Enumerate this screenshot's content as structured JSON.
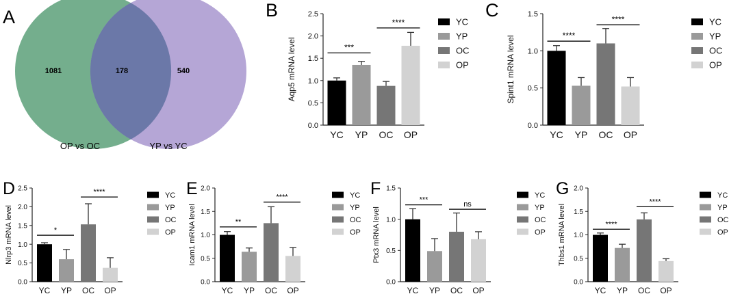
{
  "chart_data": [
    {
      "type": "venn",
      "letter": "A",
      "left_only": "1081",
      "overlap": "178",
      "right_only": "540",
      "left_label": "OP vs OC",
      "right_label": "YP vs YC",
      "colors": {
        "left": "#74ae8d",
        "right": "#b5a6d6",
        "overlap": "#6b78a8"
      }
    },
    {
      "type": "bar",
      "letter": "B",
      "ylabel": "Aqp5 mRNA level",
      "categories": [
        "YC",
        "YP",
        "OC",
        "OP"
      ],
      "values": [
        1.0,
        1.35,
        0.88,
        1.78
      ],
      "errors": [
        0.06,
        0.08,
        0.1,
        0.3
      ],
      "ylim": [
        0,
        2.5
      ],
      "yticks": [
        "0.0",
        "0.5",
        "1.0",
        "1.5",
        "2.0",
        "2.5"
      ],
      "significance": [
        {
          "from": 0,
          "to": 1,
          "y": 1.62,
          "label": "***"
        },
        {
          "from": 2,
          "to": 3,
          "y": 2.18,
          "label": "****"
        }
      ]
    },
    {
      "type": "bar",
      "letter": "C",
      "ylabel": "Spint1 mRNA level",
      "categories": [
        "YC",
        "YP",
        "OC",
        "OP"
      ],
      "values": [
        1.0,
        0.53,
        1.1,
        0.52
      ],
      "errors": [
        0.07,
        0.11,
        0.2,
        0.12
      ],
      "ylim": [
        0,
        1.5
      ],
      "yticks": [
        "0.0",
        "0.5",
        "1.0",
        "1.5"
      ],
      "significance": [
        {
          "from": 0,
          "to": 1,
          "y": 1.13,
          "label": "****"
        },
        {
          "from": 2,
          "to": 3,
          "y": 1.35,
          "label": "****"
        }
      ]
    },
    {
      "type": "bar",
      "letter": "D",
      "ylabel": "Nlrp3 mRNA level",
      "categories": [
        "YC",
        "YP",
        "OC",
        "OP"
      ],
      "values": [
        1.0,
        0.6,
        1.53,
        0.37
      ],
      "errors": [
        0.04,
        0.26,
        0.55,
        0.27
      ],
      "ylim": [
        0,
        2.5
      ],
      "yticks": [
        "0.0",
        "0.5",
        "1.0",
        "1.5",
        "2.0",
        "2.5"
      ],
      "significance": [
        {
          "from": 0,
          "to": 1,
          "y": 1.24,
          "label": "*"
        },
        {
          "from": 2,
          "to": 3,
          "y": 2.26,
          "label": "****"
        }
      ]
    },
    {
      "type": "bar",
      "letter": "E",
      "ylabel": "Icam1 mRNA level",
      "categories": [
        "YC",
        "YP",
        "OC",
        "OP"
      ],
      "values": [
        1.0,
        0.64,
        1.25,
        0.55
      ],
      "errors": [
        0.07,
        0.08,
        0.35,
        0.18
      ],
      "ylim": [
        0,
        2.0
      ],
      "yticks": [
        "0.0",
        "0.5",
        "1.0",
        "1.5",
        "2.0"
      ],
      "significance": [
        {
          "from": 0,
          "to": 1,
          "y": 1.17,
          "label": "**"
        },
        {
          "from": 2,
          "to": 3,
          "y": 1.7,
          "label": "****"
        }
      ]
    },
    {
      "type": "bar",
      "letter": "F",
      "ylabel": "Ptx3 mRNA level",
      "categories": [
        "YC",
        "YP",
        "OC",
        "OP"
      ],
      "values": [
        1.0,
        0.49,
        0.8,
        0.68
      ],
      "errors": [
        0.17,
        0.2,
        0.3,
        0.12
      ],
      "ylim": [
        0,
        1.5
      ],
      "yticks": [
        "0.0",
        "0.5",
        "1.0",
        "1.5"
      ],
      "significance": [
        {
          "from": 0,
          "to": 1,
          "y": 1.23,
          "label": "***"
        },
        {
          "from": 2,
          "to": 3,
          "y": 1.16,
          "label": "ns"
        }
      ]
    },
    {
      "type": "bar",
      "letter": "G",
      "ylabel": "Thbs1 mRNA level",
      "categories": [
        "YC",
        "YP",
        "OC",
        "OP"
      ],
      "values": [
        1.0,
        0.72,
        1.33,
        0.44
      ],
      "errors": [
        0.04,
        0.08,
        0.14,
        0.05
      ],
      "ylim": [
        0,
        2.0
      ],
      "yticks": [
        "0.0",
        "0.5",
        "1.0",
        "1.5",
        "2.0"
      ],
      "significance": [
        {
          "from": 0,
          "to": 1,
          "y": 1.12,
          "label": "****"
        },
        {
          "from": 2,
          "to": 3,
          "y": 1.6,
          "label": "****"
        }
      ]
    }
  ],
  "bar_colors": [
    "#000000",
    "#9a9a9a",
    "#767676",
    "#d2d2d2"
  ],
  "legend": [
    "YC",
    "YP",
    "OC",
    "OP"
  ]
}
